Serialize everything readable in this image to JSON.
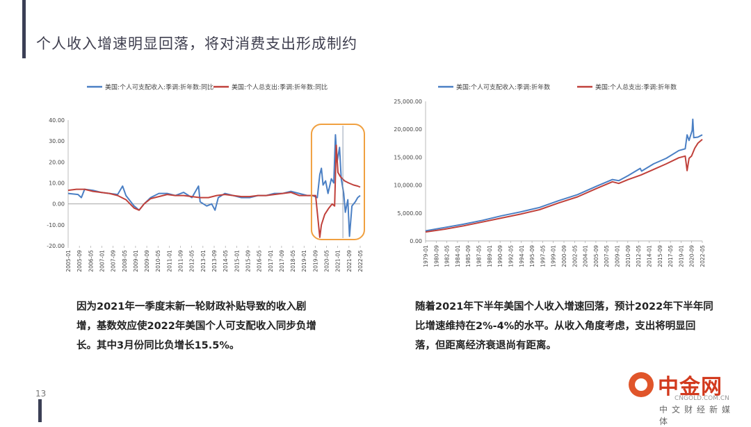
{
  "page": {
    "title": "个人收入增速明显回落，将对消费支出形成制约",
    "page_number": "13",
    "caption_left": "因为2021年一季度末新一轮财政补贴导致的收入剧增，基数效应使2022年美国个人可支配收入同步负增长。其中3月份同比负增长15.5%。",
    "caption_right": "随着2021年下半年美国个人收入增速回落，预计2022年下半年同比增速维持在2%-4%的水平。从收入角度考虑，支出将明显回落，但距离经济衰退尚有距离。"
  },
  "logo": {
    "name": "中金网",
    "url": "CNGOLD.COM.CN",
    "subtitle": "中文财经新媒体"
  },
  "colors": {
    "blue": "#4a7fc4",
    "red": "#c0403a",
    "highlight": "#f0a040",
    "axis": "#888888"
  },
  "chart_data": [
    {
      "type": "line",
      "legend_position": "top",
      "series_names": [
        "美国:个人可支配收入:季调:折年数:同比",
        "美国:个人总支出:季调:折年数:同比"
      ],
      "ylim": [
        -20,
        40
      ],
      "yticks": [
        "40.00",
        "30.00",
        "20.00",
        "10.00",
        "0.00",
        "-10.00",
        "-20.00"
      ],
      "ytick_values": [
        40,
        30,
        20,
        10,
        0,
        -10,
        -20
      ],
      "xticks": [
        "2005-01",
        "2005-09",
        "2006-05",
        "2007-01",
        "2007-09",
        "2008-05",
        "2009-01",
        "2009-09",
        "2010-05",
        "2011-01",
        "2011-09",
        "2012-05",
        "2013-01",
        "2013-09",
        "2014-05",
        "2015-01",
        "2015-09",
        "2016-05",
        "2017-01",
        "2017-09",
        "2018-05",
        "2019-01",
        "2019-09",
        "2020-05",
        "2021-01",
        "2021-09",
        "2022-05"
      ],
      "xlim": [
        2005.0,
        2022.7
      ],
      "highlight": {
        "x_range": [
          2020.0,
          2022.7
        ],
        "y_range": [
          -17,
          38
        ]
      },
      "series": [
        {
          "name": "美国:个人可支配收入:季调:折年数:同比",
          "color": "#4a7fc4",
          "points": [
            [
              2005.0,
              5
            ],
            [
              2005.6,
              4.5
            ],
            [
              2005.8,
              3
            ],
            [
              2006.0,
              7
            ],
            [
              2006.5,
              6.5
            ],
            [
              2007.0,
              5.5
            ],
            [
              2007.5,
              5
            ],
            [
              2008.0,
              4.5
            ],
            [
              2008.3,
              8.5
            ],
            [
              2008.5,
              4
            ],
            [
              2008.8,
              1
            ],
            [
              2009.0,
              -1
            ],
            [
              2009.3,
              -3
            ],
            [
              2009.6,
              0
            ],
            [
              2010.0,
              3
            ],
            [
              2010.5,
              5
            ],
            [
              2011.0,
              5
            ],
            [
              2011.5,
              4
            ],
            [
              2012.0,
              5.5
            ],
            [
              2012.5,
              3
            ],
            [
              2012.9,
              8.5
            ],
            [
              2013.0,
              1
            ],
            [
              2013.4,
              -1
            ],
            [
              2013.7,
              0
            ],
            [
              2013.9,
              -3
            ],
            [
              2014.1,
              3
            ],
            [
              2014.5,
              5
            ],
            [
              2015.0,
              4
            ],
            [
              2015.5,
              3
            ],
            [
              2016.0,
              3
            ],
            [
              2016.5,
              4
            ],
            [
              2017.0,
              4
            ],
            [
              2017.5,
              5
            ],
            [
              2018.0,
              5
            ],
            [
              2018.5,
              6
            ],
            [
              2019.0,
              5
            ],
            [
              2019.5,
              4
            ],
            [
              2019.8,
              4
            ],
            [
              2020.1,
              3
            ],
            [
              2020.25,
              14
            ],
            [
              2020.35,
              17
            ],
            [
              2020.45,
              9
            ],
            [
              2020.6,
              11
            ],
            [
              2020.75,
              5
            ],
            [
              2020.95,
              12
            ],
            [
              2021.1,
              10
            ],
            [
              2021.2,
              33
            ],
            [
              2021.3,
              20
            ],
            [
              2021.45,
              27
            ],
            [
              2021.55,
              12
            ],
            [
              2021.7,
              5
            ],
            [
              2021.8,
              -4
            ],
            [
              2021.95,
              2
            ],
            [
              2022.05,
              -15.5
            ],
            [
              2022.2,
              -1
            ],
            [
              2022.4,
              1
            ],
            [
              2022.55,
              3
            ],
            [
              2022.7,
              4
            ]
          ]
        },
        {
          "name": "美国:个人总支出:季调:折年数:同比",
          "color": "#c0403a",
          "points": [
            [
              2005.0,
              6.5
            ],
            [
              2005.5,
              7
            ],
            [
              2006.0,
              7
            ],
            [
              2006.5,
              6
            ],
            [
              2007.0,
              5.5
            ],
            [
              2007.5,
              5
            ],
            [
              2008.0,
              4
            ],
            [
              2008.5,
              2
            ],
            [
              2009.0,
              -2
            ],
            [
              2009.3,
              -3
            ],
            [
              2009.6,
              0
            ],
            [
              2010.0,
              2.5
            ],
            [
              2010.5,
              3.5
            ],
            [
              2011.0,
              4.5
            ],
            [
              2011.5,
              4
            ],
            [
              2012.0,
              4
            ],
            [
              2012.5,
              3.5
            ],
            [
              2013.0,
              3
            ],
            [
              2013.5,
              3
            ],
            [
              2014.0,
              4
            ],
            [
              2014.5,
              4.5
            ],
            [
              2015.0,
              4
            ],
            [
              2015.5,
              3.5
            ],
            [
              2016.0,
              3.5
            ],
            [
              2016.5,
              4
            ],
            [
              2017.0,
              4
            ],
            [
              2017.5,
              4.5
            ],
            [
              2018.0,
              5
            ],
            [
              2018.5,
              5.5
            ],
            [
              2019.0,
              4
            ],
            [
              2019.5,
              4
            ],
            [
              2019.8,
              4
            ],
            [
              2020.0,
              4
            ],
            [
              2020.15,
              -8
            ],
            [
              2020.25,
              -16
            ],
            [
              2020.35,
              -10
            ],
            [
              2020.55,
              -5
            ],
            [
              2020.8,
              -2
            ],
            [
              2021.0,
              0
            ],
            [
              2021.15,
              -1
            ],
            [
              2021.25,
              28
            ],
            [
              2021.35,
              15
            ],
            [
              2021.5,
              13
            ],
            [
              2021.75,
              11
            ],
            [
              2022.0,
              10
            ],
            [
              2022.3,
              9
            ],
            [
              2022.55,
              8.5
            ],
            [
              2022.7,
              8
            ]
          ]
        }
      ]
    },
    {
      "type": "line",
      "legend_position": "top",
      "series_names": [
        "美国:个人可支配收入:季调:折年数",
        "美国:个人总支出:季调:折年数"
      ],
      "ylim": [
        0,
        25000
      ],
      "yticks": [
        "25,000.00",
        "20,000.00",
        "15,000.00",
        "10,000.00",
        "5,000.00",
        "0.00"
      ],
      "ytick_values": [
        25000,
        20000,
        15000,
        10000,
        5000,
        0
      ],
      "xticks": [
        "1979-01",
        "1980-09",
        "1982-05",
        "1984-01",
        "1985-09",
        "1987-05",
        "1989-01",
        "1990-09",
        "1992-05",
        "1994-01",
        "1995-09",
        "1997-05",
        "1999-01",
        "2000-09",
        "2002-05",
        "2004-01",
        "2005-09",
        "2007-05",
        "2009-01",
        "2010-09",
        "2012-05",
        "2014-01",
        "2015-09",
        "2017-05",
        "2019-01",
        "2020-09",
        "2022-05"
      ],
      "xlim": [
        1979.0,
        2022.7
      ],
      "series": [
        {
          "name": "美国:个人可支配收入:季调:折年数",
          "color": "#4a7fc4",
          "points": [
            [
              1979.0,
              1800
            ],
            [
              1982.0,
              2400
            ],
            [
              1985.0,
              3000
            ],
            [
              1988.0,
              3700
            ],
            [
              1991.0,
              4500
            ],
            [
              1994.0,
              5200
            ],
            [
              1997.0,
              6000
            ],
            [
              2000.0,
              7200
            ],
            [
              2003.0,
              8300
            ],
            [
              2006.0,
              9800
            ],
            [
              2008.5,
              11000
            ],
            [
              2009.5,
              10800
            ],
            [
              2011.0,
              11700
            ],
            [
              2012.9,
              13000
            ],
            [
              2013.1,
              12500
            ],
            [
              2015.0,
              13800
            ],
            [
              2017.0,
              14800
            ],
            [
              2019.0,
              16200
            ],
            [
              2020.0,
              16500
            ],
            [
              2020.3,
              19000
            ],
            [
              2020.6,
              18000
            ],
            [
              2021.1,
              19800
            ],
            [
              2021.2,
              21800
            ],
            [
              2021.35,
              18500
            ],
            [
              2022.0,
              18600
            ],
            [
              2022.7,
              19000
            ]
          ]
        },
        {
          "name": "美国:个人总支出:季调:折年数",
          "color": "#c0403a",
          "points": [
            [
              1979.0,
              1600
            ],
            [
              1982.0,
              2100
            ],
            [
              1985.0,
              2700
            ],
            [
              1988.0,
              3400
            ],
            [
              1991.0,
              4100
            ],
            [
              1994.0,
              4800
            ],
            [
              1997.0,
              5600
            ],
            [
              2000.0,
              6800
            ],
            [
              2003.0,
              7900
            ],
            [
              2006.0,
              9400
            ],
            [
              2008.5,
              10600
            ],
            [
              2009.5,
              10300
            ],
            [
              2011.0,
              11000
            ],
            [
              2013.0,
              11800
            ],
            [
              2015.0,
              12800
            ],
            [
              2017.0,
              13800
            ],
            [
              2019.0,
              14900
            ],
            [
              2020.0,
              15200
            ],
            [
              2020.3,
              12600
            ],
            [
              2020.6,
              14800
            ],
            [
              2021.0,
              15200
            ],
            [
              2021.5,
              16600
            ],
            [
              2022.0,
              17500
            ],
            [
              2022.7,
              18200
            ]
          ]
        }
      ]
    }
  ]
}
